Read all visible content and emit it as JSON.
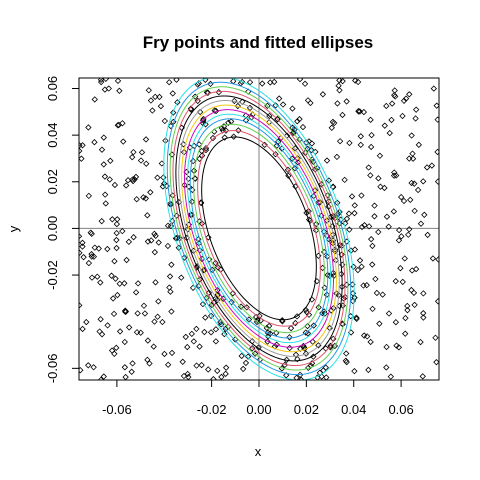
{
  "chart_data": {
    "type": "scatter",
    "title": "Fry points and fitted ellipses",
    "xlabel": "x",
    "ylabel": "y",
    "xlim": [
      -0.076,
      0.076
    ],
    "ylim": [
      -0.065,
      0.0645
    ],
    "x_ticks": [
      -0.06,
      -0.02,
      0.0,
      0.02,
      0.04,
      0.06
    ],
    "x_tick_labels": [
      "-0.06",
      "-0.02",
      "0.00",
      "0.02",
      "0.04",
      "0.06"
    ],
    "y_ticks": [
      -0.06,
      -0.02,
      0.0,
      0.02,
      0.04,
      0.06
    ],
    "y_tick_labels": [
      "-0.06",
      "-0.02",
      "0.00",
      "0.02",
      "0.04",
      "0.06"
    ],
    "reference_lines": {
      "x": 0.0,
      "y": 0.0,
      "color": "#808080"
    },
    "fry_points": {
      "marker": "open-diamond",
      "color": "#000000",
      "seed": 7,
      "background_count": 360,
      "ring_count": 300
    },
    "ellipse_template": {
      "center": [
        0.0,
        0.0
      ],
      "semi_major": 0.041,
      "semi_minor": 0.021,
      "major_axis_angle_deg": 110
    },
    "ellipses": [
      {
        "scale": 1.0,
        "color": "#000000"
      },
      {
        "scale": 1.07,
        "color": "#df536b"
      },
      {
        "scale": 1.14,
        "color": "#61d04f"
      },
      {
        "scale": 1.2,
        "color": "#2297e6"
      },
      {
        "scale": 1.25,
        "color": "#28e2e5"
      },
      {
        "scale": 1.3,
        "color": "#cd0bbc"
      },
      {
        "scale": 1.35,
        "color": "#f5c710"
      },
      {
        "scale": 1.4,
        "color": "#9e9e9e"
      },
      {
        "scale": 1.45,
        "color": "#000000"
      },
      {
        "scale": 1.5,
        "color": "#df536b"
      },
      {
        "scale": 1.55,
        "color": "#61d04f"
      },
      {
        "scale": 1.6,
        "color": "#2297e6"
      },
      {
        "scale": 1.66,
        "color": "#28e2e5"
      }
    ]
  }
}
